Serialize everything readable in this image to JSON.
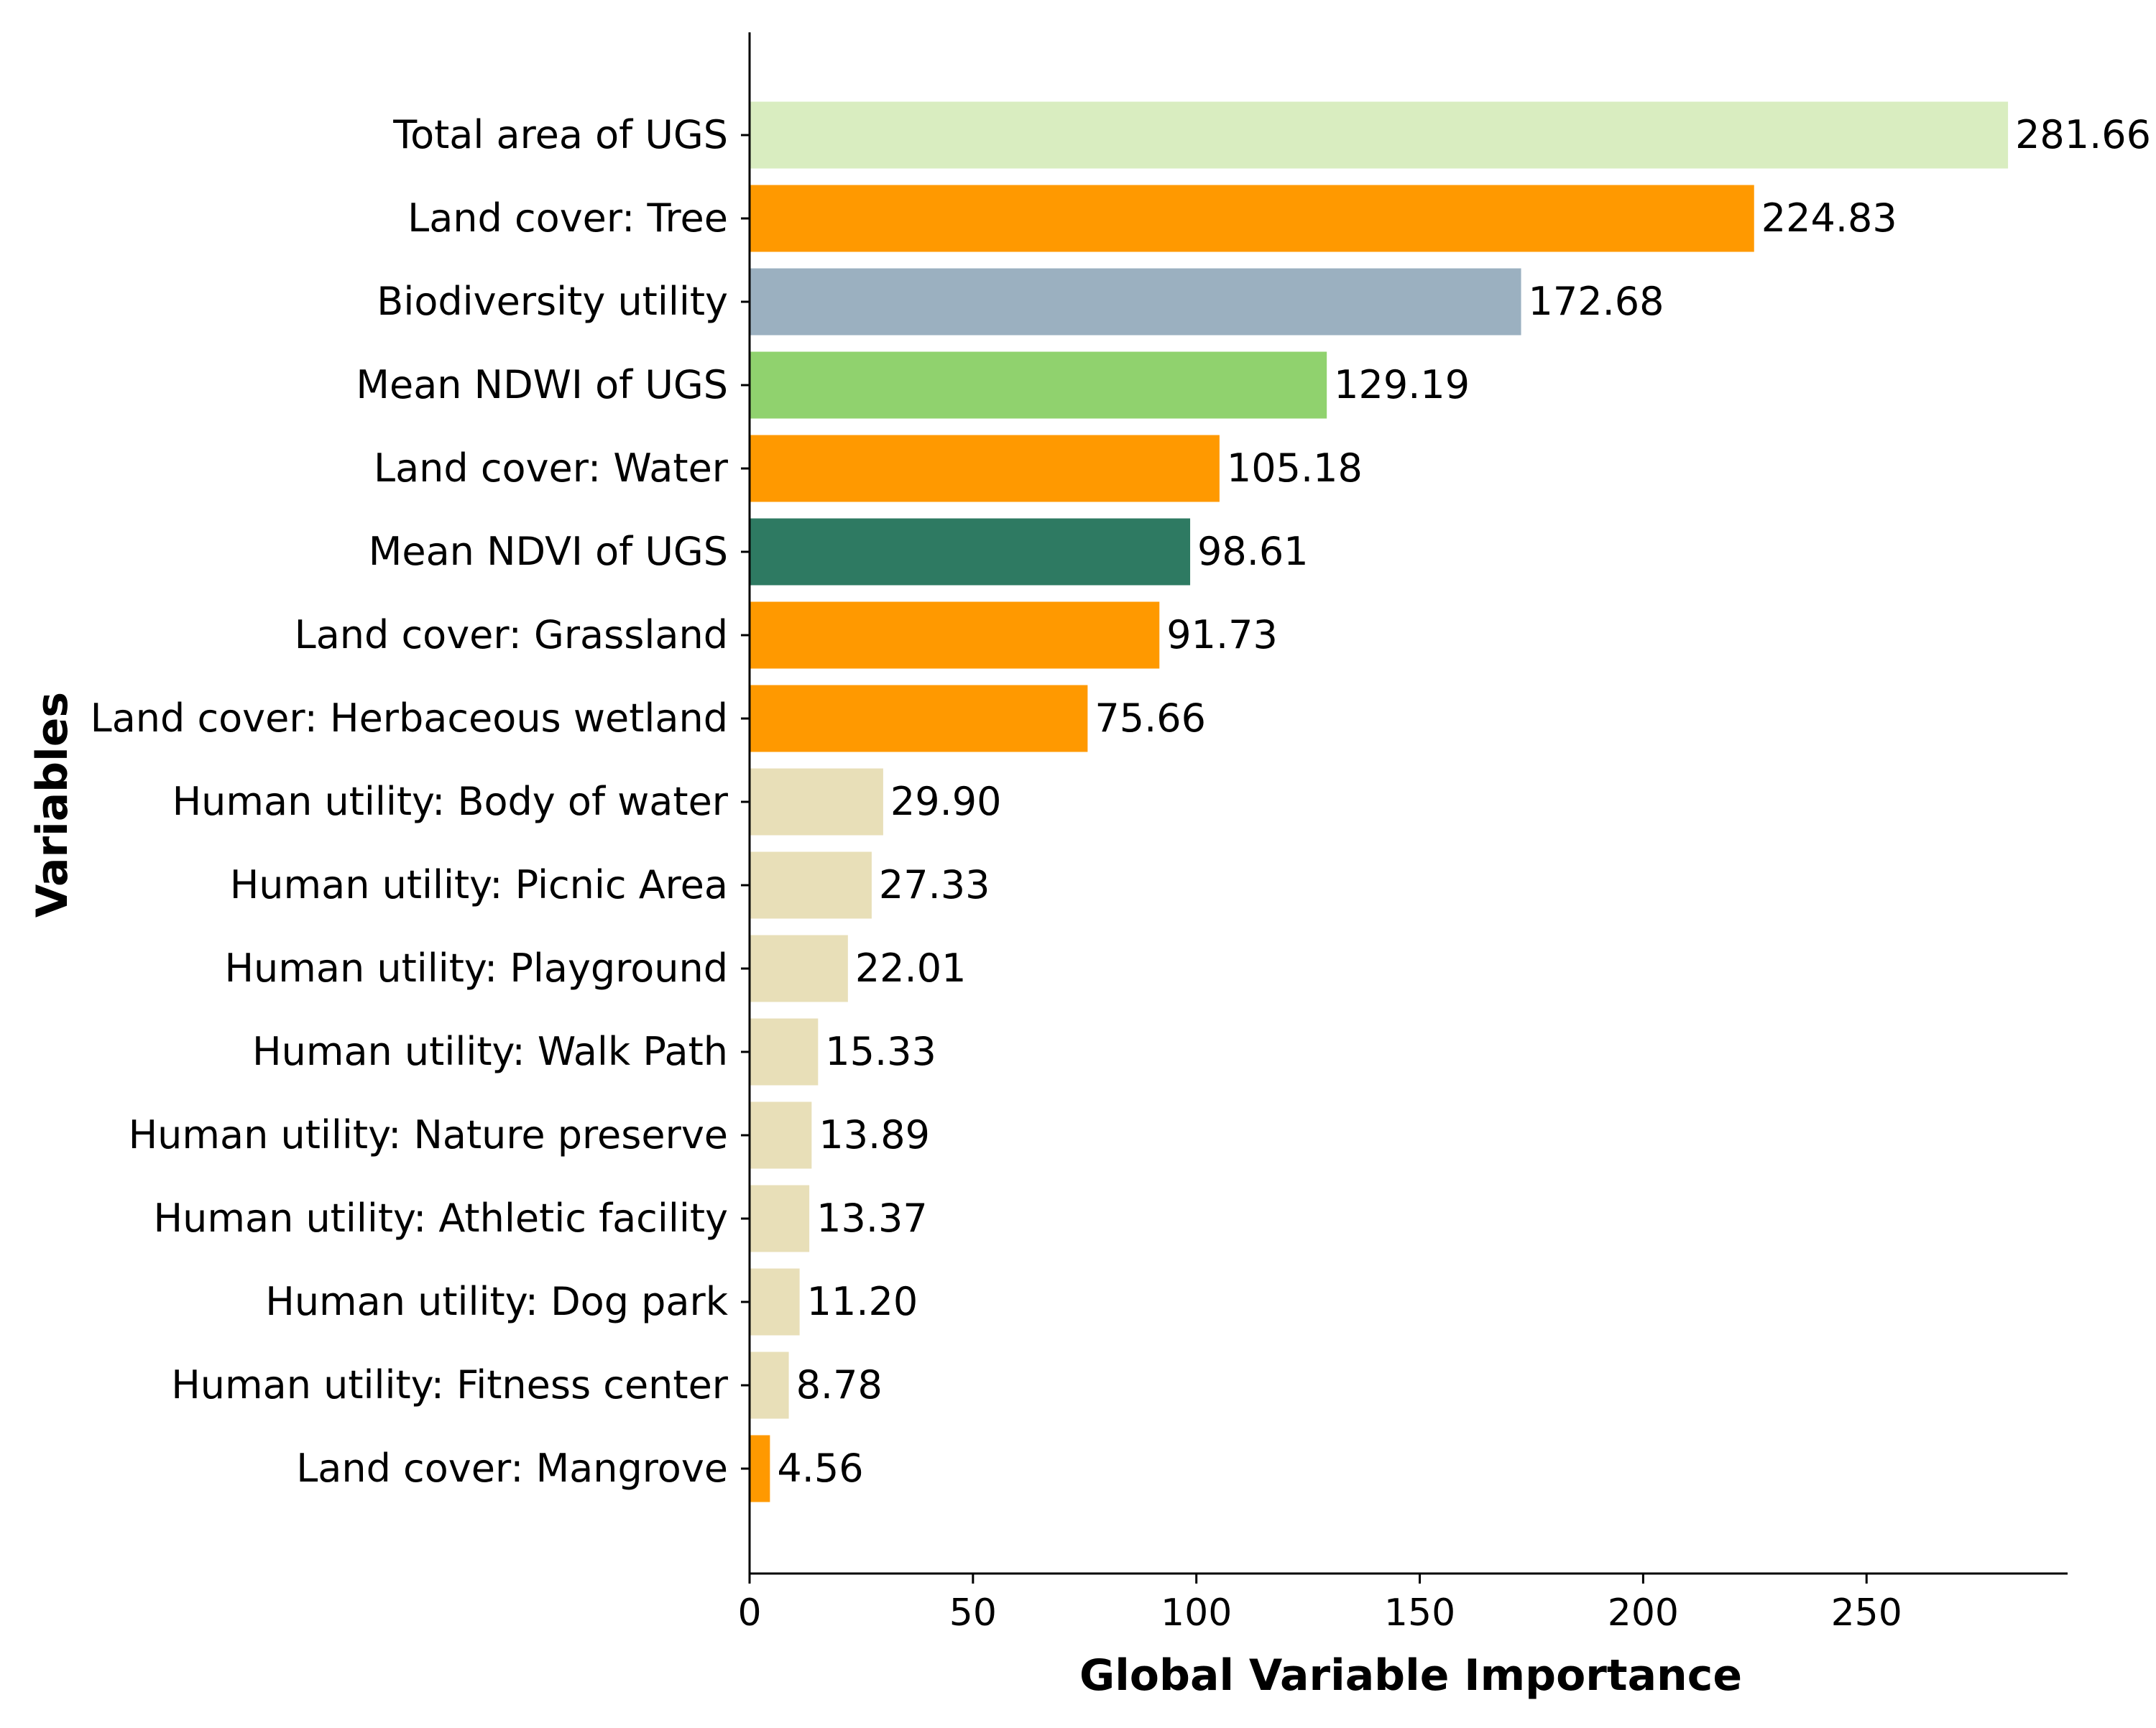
{
  "chart_data": {
    "type": "bar",
    "orientation": "horizontal",
    "title": "",
    "xlabel": "Global Variable Importance",
    "ylabel": "Variables",
    "xlim": [
      0,
      295
    ],
    "xticks": [
      0,
      50,
      100,
      150,
      200,
      250
    ],
    "grid": false,
    "legend": "none",
    "categories": [
      "Total area of UGS",
      "Land cover: Tree",
      "Biodiversity utility",
      "Mean NDWI of UGS",
      "Land cover: Water",
      "Mean NDVI of UGS",
      "Land cover: Grassland",
      "Land cover: Herbaceous wetland",
      "Human utility: Body of water",
      "Human utility: Picnic Area",
      "Human utility: Playground",
      "Human utility: Walk Path",
      "Human utility: Nature preserve",
      "Human utility: Athletic facility",
      "Human utility: Dog park",
      "Human utility: Fitness center",
      "Land cover: Mangrove"
    ],
    "values": [
      281.66,
      224.83,
      172.68,
      129.19,
      105.18,
      98.61,
      91.73,
      75.66,
      29.9,
      27.33,
      22.01,
      15.33,
      13.89,
      13.37,
      11.2,
      8.78,
      4.56
    ],
    "value_labels": [
      "281.66",
      "224.83",
      "172.68",
      "129.19",
      "105.18",
      "98.61",
      "91.73",
      "75.66",
      "29.90",
      "27.33",
      "22.01",
      "15.33",
      "13.89",
      "13.37",
      "11.20",
      "8.78",
      "4.56"
    ],
    "colors": [
      "#d9edc0",
      "#ff9900",
      "#9bb0c0",
      "#90d26e",
      "#ff9900",
      "#2e7a62",
      "#ff9900",
      "#ff9900",
      "#e8dfb8",
      "#e8dfb8",
      "#e8dfb8",
      "#e8dfb8",
      "#e8dfb8",
      "#e8dfb8",
      "#e8dfb8",
      "#e8dfb8",
      "#ff9900"
    ]
  }
}
